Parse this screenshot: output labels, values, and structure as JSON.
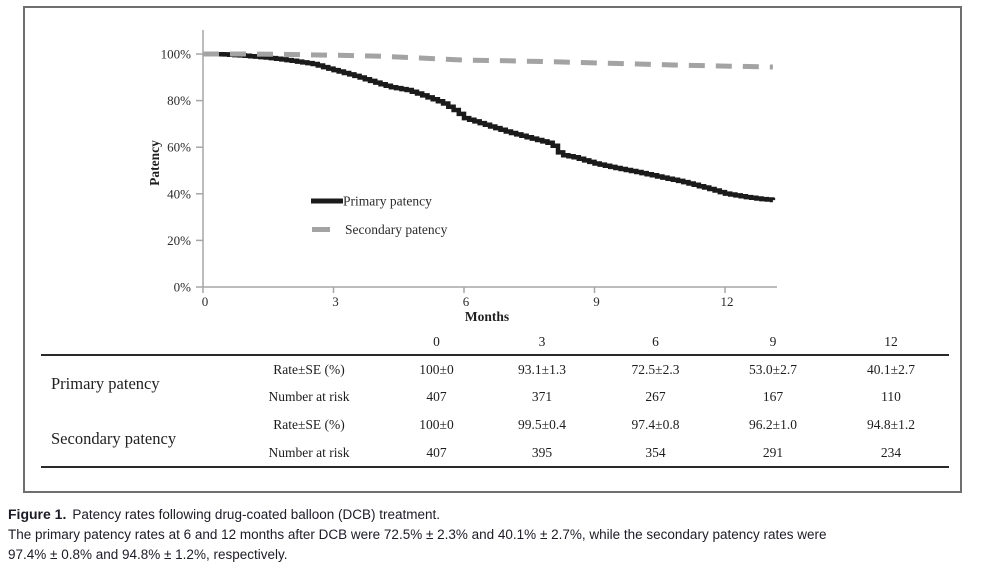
{
  "chart_data": {
    "type": "line",
    "title": "",
    "xlabel": "Months",
    "ylabel": "Patency",
    "xlim": [
      0,
      13.2
    ],
    "ylim": [
      0,
      110
    ],
    "grid": false,
    "legend_position": "center-left inside plot",
    "x_ticks": [
      {
        "value": 0,
        "label": "0"
      },
      {
        "value": 3,
        "label": "3"
      },
      {
        "value": 6,
        "label": "6"
      },
      {
        "value": 9,
        "label": "9"
      },
      {
        "value": 12,
        "label": "12"
      }
    ],
    "y_ticks": [
      {
        "value": 0,
        "label": "0%"
      },
      {
        "value": 20,
        "label": "20%"
      },
      {
        "value": 40,
        "label": "40%"
      },
      {
        "value": 60,
        "label": "60%"
      },
      {
        "value": 80,
        "label": "80%"
      },
      {
        "value": 100,
        "label": "100%"
      }
    ],
    "series": [
      {
        "name": "Primary patency",
        "color": "#1b1b1b",
        "style": "km-step",
        "stroke_width": 4.5,
        "x": [
          0,
          0.5,
          1,
          1.5,
          2,
          2.5,
          3,
          3.5,
          4,
          4.3,
          4.7,
          5,
          5.5,
          5.8,
          6,
          6.5,
          7,
          7.5,
          8,
          8.1,
          8.2,
          8.5,
          9,
          9.5,
          10,
          10.5,
          11,
          11.5,
          12,
          12.4,
          12.8,
          13.1
        ],
        "y": [
          100,
          99.8,
          99.2,
          98.4,
          97.2,
          95.8,
          93.1,
          90.5,
          87.5,
          85.8,
          84.5,
          82.5,
          79,
          75.5,
          72.5,
          69.5,
          66.5,
          64,
          61.5,
          59.2,
          56.8,
          55.8,
          53,
          51,
          49.2,
          47.2,
          45.2,
          42.8,
          40.1,
          38.8,
          37.8,
          37.3
        ]
      },
      {
        "name": "Secondary patency",
        "color": "#a3a3a3",
        "style": "dashed",
        "stroke_width": 5,
        "dash": "16 11",
        "x": [
          0,
          1,
          2,
          3,
          4,
          5,
          6,
          7,
          8,
          9,
          10,
          11,
          12,
          13.1
        ],
        "y": [
          100,
          100,
          99.8,
          99.5,
          99.1,
          98.3,
          97.4,
          97.1,
          96.7,
          96.2,
          95.7,
          95.2,
          94.8,
          94.4
        ]
      }
    ]
  },
  "table": {
    "col_headers": [
      "0",
      "3",
      "6",
      "9",
      "12"
    ],
    "groups": [
      {
        "label": "Primary patency",
        "rows": [
          {
            "label": "Rate±SE (%)",
            "values": [
              "100±0",
              "93.1±1.3",
              "72.5±2.3",
              "53.0±2.7",
              "40.1±2.7"
            ]
          },
          {
            "label": "Number at risk",
            "values": [
              "407",
              "371",
              "267",
              "167",
              "110"
            ]
          }
        ]
      },
      {
        "label": "Secondary patency",
        "rows": [
          {
            "label": "Rate±SE (%)",
            "values": [
              "100±0",
              "99.5±0.4",
              "97.4±0.8",
              "96.2±1.0",
              "94.8±1.2"
            ]
          },
          {
            "label": "Number at risk",
            "values": [
              "407",
              "395",
              "354",
              "291",
              "234"
            ]
          }
        ]
      }
    ]
  },
  "caption": {
    "label": "Figure 1.",
    "title": "Patency rates following drug-coated balloon (DCB) treatment.",
    "body_line1": "The primary patency rates at 6 and 12 months after DCB were 72.5% ± 2.3% and 40.1% ± 2.7%, while the secondary patency rates were",
    "body_line2": "97.4% ± 0.8% and 94.8% ± 1.2%, respectively."
  }
}
